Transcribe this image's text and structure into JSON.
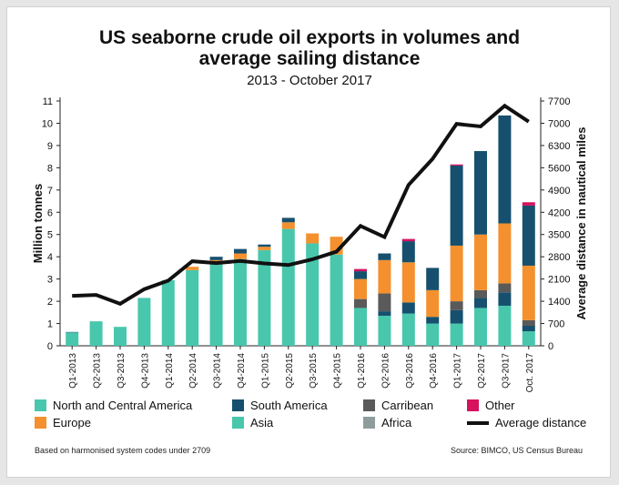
{
  "title_line1": "US seaborne crude oil exports in volumes and",
  "title_line2": "average sailing distance",
  "subtitle": "2013 - October 2017",
  "footnote": "Based on harmonised system codes under 2709",
  "source": "Source: BIMCO, US Census Bureau",
  "colors": {
    "north_central_america": "#48c7ad",
    "south_america": "#17506e",
    "carribean": "#5a5a5a",
    "other": "#d6125e",
    "europe": "#f4912e",
    "asia": "#48c7ad",
    "africa": "#8e9c9c",
    "line": "#111111"
  },
  "chart_data": {
    "type": "bar",
    "stacked": true,
    "categories": [
      "Q1-2013",
      "Q2-2013",
      "Q3-2013",
      "Q4-2013",
      "Q1-2014",
      "Q2-2014",
      "Q3-2014",
      "Q4-2014",
      "Q1-2015",
      "Q2-2015",
      "Q3-2015",
      "Q4-2015",
      "Q1-2016",
      "Q2-2016",
      "Q3-2016",
      "Q4-2016",
      "Q1-2017",
      "Q2-2017",
      "Q3-2017",
      "Oct. 2017"
    ],
    "series": [
      {
        "name": "North and Central America",
        "key": "north_central_america",
        "values": [
          0.6,
          1.1,
          0.85,
          2.15,
          2.95,
          3.4,
          3.7,
          3.9,
          4.3,
          5.25,
          4.6,
          4.1,
          1.7,
          1.35,
          1.45,
          1.0,
          1.0,
          1.7,
          1.8,
          0.65
        ]
      },
      {
        "name": "Asia",
        "key": "asia",
        "values": [
          0,
          0,
          0,
          0,
          0,
          0,
          0,
          0,
          0,
          0,
          0,
          0,
          0,
          0,
          0,
          0,
          0,
          0,
          0,
          0
        ]
      },
      {
        "name": "Africa",
        "key": "africa",
        "values": [
          0,
          0,
          0,
          0,
          0,
          0,
          0,
          0,
          0,
          0,
          0,
          0,
          0,
          0,
          0,
          0,
          0,
          0,
          0,
          0
        ]
      },
      {
        "name": "South America",
        "key": "south_america",
        "values": [
          0.02,
          0,
          0,
          0,
          0,
          0,
          0,
          0,
          0,
          0,
          0,
          0,
          0,
          0.2,
          0.5,
          0.3,
          0.6,
          0.45,
          0.6,
          0.25
        ]
      },
      {
        "name": "Carribean",
        "key": "carribean",
        "values": [
          0,
          0,
          0,
          0,
          0,
          0,
          0,
          0,
          0,
          0,
          0,
          0,
          0.4,
          0.8,
          0,
          0,
          0.4,
          0.35,
          0.4,
          0.25
        ]
      },
      {
        "name": "Europe",
        "key": "europe",
        "values": [
          0,
          0,
          0,
          0,
          0,
          0.15,
          0.15,
          0.25,
          0.15,
          0.3,
          0.45,
          0.8,
          0.9,
          1.5,
          1.8,
          1.2,
          2.5,
          2.5,
          2.7,
          2.45
        ]
      },
      {
        "name": "South America",
        "key": "south_america",
        "values": [
          0,
          0,
          0,
          0,
          0,
          0,
          0.15,
          0.2,
          0.1,
          0.2,
          0,
          0,
          0.35,
          0.3,
          0.95,
          1.0,
          3.6,
          3.75,
          4.85,
          2.7
        ]
      },
      {
        "name": "Other",
        "key": "other",
        "values": [
          0,
          0,
          0,
          0,
          0,
          0,
          0,
          0,
          0,
          0,
          0,
          0,
          0.1,
          0,
          0.1,
          0,
          0.05,
          0,
          0,
          0.15
        ]
      }
    ],
    "line": {
      "name": "Average distance",
      "axis": "right",
      "values": [
        1570,
        1600,
        1320,
        1780,
        2050,
        2660,
        2600,
        2670,
        2590,
        2540,
        2720,
        2960,
        3770,
        3420,
        5060,
        5880,
        6980,
        6900,
        7550,
        7050
      ]
    },
    "ylabel": "Million tonnes",
    "y2label": "Average distance in nautical miles",
    "ylim": [
      0,
      11
    ],
    "y2lim": [
      0,
      7700
    ],
    "yticks": [
      "0",
      "1",
      "2",
      "3",
      "4",
      "5",
      "6",
      "7",
      "8",
      "9",
      "10",
      "11"
    ],
    "y2ticks": [
      "0",
      "700",
      "1400",
      "2100",
      "2800",
      "3500",
      "4200",
      "4900",
      "5600",
      "6300",
      "7000",
      "7700"
    ],
    "grid": false,
    "legend": {
      "position": "bottom",
      "items": [
        {
          "label": "North and Central America",
          "key": "north_central_america"
        },
        {
          "label": "South America",
          "key": "south_america"
        },
        {
          "label": "Carribean",
          "key": "carribean"
        },
        {
          "label": "Other",
          "key": "other"
        },
        {
          "label": "Europe",
          "key": "europe"
        },
        {
          "label": "Asia",
          "key": "asia"
        },
        {
          "label": "Africa",
          "key": "africa"
        },
        {
          "label": "Average distance",
          "key": "line"
        }
      ]
    }
  }
}
